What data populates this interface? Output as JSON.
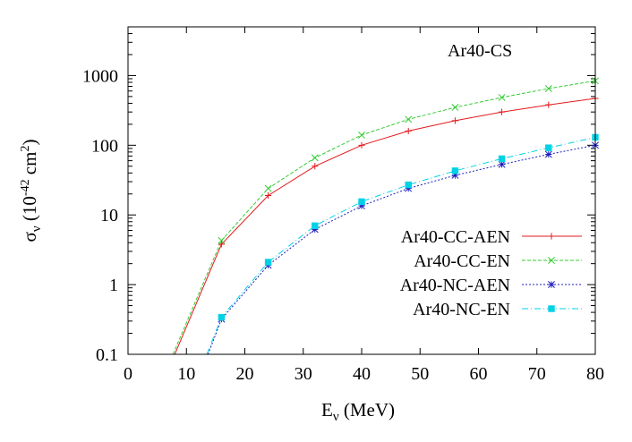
{
  "chart_data": {
    "type": "line",
    "title": "",
    "annotation": "Ar40-CS",
    "xlabel": {
      "main": "E",
      "sub": "ν",
      "rest": " (MeV)"
    },
    "ylabel": {
      "main": "σ",
      "sub": "ν",
      "rest": " (10",
      "exp1": "-42",
      "mid": " cm",
      "exp2": "2",
      "end": ")"
    },
    "x": [
      16,
      24,
      32,
      40,
      48,
      56,
      64,
      72,
      80
    ],
    "xlim": [
      0,
      80
    ],
    "ylim": [
      0.1,
      5000
    ],
    "yscale": "log",
    "grid": false,
    "legend_position": "right",
    "x_ticks": [
      "0",
      "10",
      "20",
      "30",
      "40",
      "50",
      "60",
      "70",
      "80"
    ],
    "y_ticks": [
      "0.1",
      "1",
      "10",
      "100",
      "1000"
    ],
    "series": [
      {
        "name": "Ar40-CC-AEN",
        "color": "#e41a1c",
        "marker": "plus",
        "dash": "none",
        "curve_start": [
          8,
          0.1
        ],
        "values": [
          3.8,
          19,
          50,
          100,
          160,
          225,
          300,
          380,
          470
        ]
      },
      {
        "name": "Ar40-CC-EN",
        "color": "#33cc33",
        "marker": "cross",
        "dash": "4,2",
        "curve_start": [
          7.7,
          0.1
        ],
        "values": [
          4.3,
          24,
          66,
          140,
          235,
          350,
          485,
          650,
          840
        ]
      },
      {
        "name": "Ar40-NC-AEN",
        "color": "#1f1fbf",
        "marker": "star",
        "dash": "2,2",
        "curve_start": [
          13.7,
          0.1
        ],
        "values": [
          0.32,
          1.9,
          6.2,
          13.5,
          24,
          37,
          53,
          74,
          100
        ]
      },
      {
        "name": "Ar40-NC-EN",
        "color": "#00d2e6",
        "marker": "square",
        "dash": "7,3,1,3",
        "curve_start": [
          13.5,
          0.1
        ],
        "values": [
          0.34,
          2.1,
          7,
          15.5,
          27,
          43,
          64,
          92,
          130
        ]
      }
    ]
  }
}
